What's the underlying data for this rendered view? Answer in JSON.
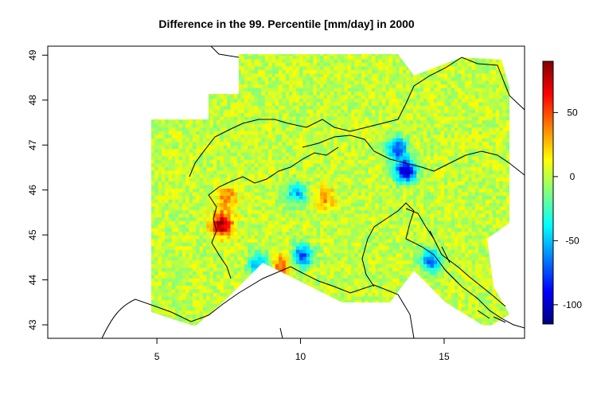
{
  "chart_data": {
    "type": "heatmap",
    "title": "Difference in the 99. Percentile [mm/day] in 2000",
    "xlabel": "",
    "ylabel": "",
    "xlim": [
      1.2,
      17.8
    ],
    "ylim": [
      42.7,
      49.2
    ],
    "x_ticks": [
      5,
      10,
      15
    ],
    "y_ticks": [
      43,
      44,
      45,
      46,
      47,
      48,
      49
    ],
    "colorbar": {
      "range": [
        -115,
        90
      ],
      "ticks": [
        50,
        0,
        -50,
        -100
      ],
      "colors": [
        "#00007F",
        "#0000FF",
        "#007FFF",
        "#00FFFF",
        "#7FFF7F",
        "#FFFF00",
        "#FF7F00",
        "#FF0000",
        "#7F0000"
      ]
    },
    "field": {
      "lon_range": [
        4.8,
        17.5
      ],
      "lat_range": [
        43.0,
        49.0
      ],
      "typical_value": 0,
      "hotspots": [
        {
          "lon": 7.2,
          "lat": 45.2,
          "value": 85
        },
        {
          "lon": 7.4,
          "lat": 45.8,
          "value": 40
        },
        {
          "lon": 10.8,
          "lat": 45.8,
          "value": 35
        },
        {
          "lon": 9.3,
          "lat": 44.3,
          "value": 45
        },
        {
          "lon": 13.6,
          "lat": 46.4,
          "value": -110
        },
        {
          "lon": 13.3,
          "lat": 46.9,
          "value": -80
        },
        {
          "lon": 10.0,
          "lat": 44.5,
          "value": -75
        },
        {
          "lon": 8.5,
          "lat": 44.3,
          "value": -60
        },
        {
          "lon": 14.5,
          "lat": 44.4,
          "value": -70
        },
        {
          "lon": 9.8,
          "lat": 45.9,
          "value": -55
        }
      ]
    },
    "grid": false
  }
}
